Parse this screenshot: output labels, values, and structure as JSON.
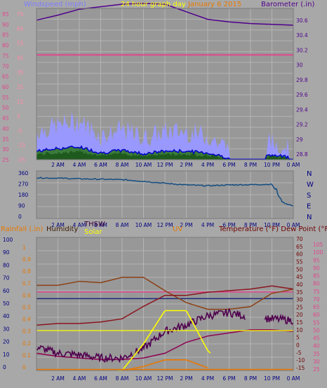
{
  "header": {
    "windspeed_label": "Windspeed (mph)",
    "graph_title": "24 hour graph day",
    "date_label": "January 6 2015",
    "barometer_label": "Barometer (.in)"
  },
  "colors": {
    "background": "#a8a8a8",
    "plot": "#989898",
    "grid": "#b4b4b4",
    "wind_gust": "#9898ff",
    "wind_avg": "#0000c8",
    "wind_low": "#1e5a1e",
    "barometer": "#50008c",
    "pink": "#e0468c",
    "direction": "#144e82",
    "humidity": "#8c4014",
    "temperature": "#8c141e",
    "dewpoint": "#8c0050",
    "thsw": "#50004e",
    "solar": "#ffff00",
    "uv": "#e87800",
    "rainfall": "#e87800",
    "navy": "#1e2878"
  },
  "x_ticks": [
    "2 AM",
    "4 AM",
    "6 AM",
    "8 AM",
    "10 AM",
    "12 PM",
    "2 PM",
    "4 PM",
    "6 PM",
    "8 PM",
    "10 PM",
    "0 AM"
  ],
  "panel1": {
    "wind_ticks": [
      "95",
      "90",
      "85",
      "80",
      "75",
      "70",
      "65",
      "60",
      "55",
      "50",
      "45",
      "40",
      "35",
      "30",
      "25"
    ],
    "barometer_ticks": [
      "30.6",
      "30.4",
      "30.2",
      "30",
      "29.8",
      "29.6",
      "29.4",
      "29.2",
      "29",
      "28.8"
    ],
    "extra_ticks": [
      "75",
      "65",
      "55",
      "45",
      "35",
      "25",
      "15",
      "5",
      "-5",
      "-15",
      "-25"
    ]
  },
  "panel2": {
    "dir_ticks": [
      "360",
      "270",
      "180",
      "90",
      "0"
    ],
    "compass_labels": [
      "N",
      "W",
      "S",
      "E",
      "N"
    ]
  },
  "panel3": {
    "legend": {
      "rainfall": "Rainfall (.in)",
      "humidity": "Humidity",
      "thsw": "THSW",
      "solar": "Solar",
      "uv": "UV",
      "temperature": "Temperature (°F) Dew Point (°F)"
    },
    "left_ticks": [
      "100",
      "90",
      "80",
      "70",
      "60",
      "50",
      "40",
      "30",
      "20",
      "10",
      "0"
    ],
    "rain_ticks": [
      "1",
      "0.9",
      "0.8",
      "0.7",
      "0.6",
      "0.5",
      "0.4",
      "0.3",
      "0.2",
      "0.1",
      "0"
    ],
    "temp_ticks": [
      "70",
      "65",
      "60",
      "55",
      "50",
      "45",
      "40",
      "35",
      "30",
      "25",
      "20",
      "15",
      "10",
      "5",
      "0",
      "-5",
      "-10",
      "-15"
    ],
    "far_ticks": [
      "105",
      "100",
      "95",
      "90",
      "85",
      "80",
      "75",
      "70",
      "65",
      "60",
      "55",
      "50",
      "45",
      "40",
      "35",
      "30",
      "25"
    ]
  },
  "chart_data": [
    {
      "type": "area",
      "title": "24 hour graph day January 6 2015",
      "x": [
        "0 AM",
        "2 AM",
        "4 AM",
        "6 AM",
        "8 AM",
        "10 AM",
        "12 PM",
        "2 PM",
        "4 PM",
        "6 PM",
        "8 PM",
        "10 PM",
        "0 AM"
      ],
      "series": [
        {
          "name": "Windspeed (mph)",
          "axis": "left",
          "values": [
            33,
            36,
            38,
            31,
            34,
            30,
            33,
            33,
            31,
            25,
            25,
            28,
            26
          ]
        },
        {
          "name": "Barometer (.in)",
          "axis": "right",
          "values": [
            30.46,
            30.52,
            30.59,
            30.62,
            30.65,
            30.66,
            30.65,
            30.56,
            30.47,
            30.44,
            30.42,
            30.41,
            30.4
          ]
        }
      ],
      "ylim_left": [
        25,
        95
      ],
      "ylim_right": [
        28.8,
        30.6
      ]
    },
    {
      "type": "line",
      "x": [
        "0 AM",
        "2 AM",
        "4 AM",
        "6 AM",
        "8 AM",
        "10 AM",
        "12 PM",
        "2 PM",
        "4 PM",
        "6 PM",
        "8 PM",
        "10 PM",
        "11 PM",
        "0 AM"
      ],
      "series": [
        {
          "name": "Wind direction",
          "values": [
            335,
            332,
            326,
            322,
            318,
            303,
            285,
            270,
            262,
            270,
            272,
            276,
            110,
            75
          ]
        }
      ],
      "ylim": [
        0,
        360
      ]
    },
    {
      "type": "line",
      "x": [
        "0 AM",
        "2 AM",
        "4 AM",
        "6 AM",
        "8 AM",
        "10 AM",
        "12 PM",
        "2 PM",
        "4 PM",
        "6 PM",
        "8 PM",
        "10 PM",
        "0 AM"
      ],
      "series": [
        {
          "name": "Humidity",
          "axis": "left",
          "values": [
            64,
            64,
            67,
            66,
            70,
            70,
            60,
            51,
            46,
            46,
            48,
            58,
            61
          ]
        },
        {
          "name": "Temperature (°F)",
          "axis": "right",
          "values": [
            14,
            15,
            15,
            16,
            18,
            26,
            33,
            33,
            35,
            36,
            37,
            39,
            37
          ]
        },
        {
          "name": "THSW",
          "axis": "right",
          "values": [
            0,
            -4,
            -5,
            -7,
            -7,
            -1,
            10,
            14,
            20,
            22,
            19,
            18,
            17
          ]
        },
        {
          "name": "Dew Point (°F)",
          "axis": "right",
          "values": [
            -4,
            -6,
            -7,
            -8,
            -8,
            -7,
            -4,
            3,
            7,
            9,
            11,
            11,
            10
          ]
        },
        {
          "name": "Solar",
          "values": [
            0,
            0,
            0,
            0,
            0,
            20,
            45,
            45,
            15,
            0,
            0,
            0,
            0
          ]
        },
        {
          "name": "UV",
          "values": [
            0,
            0,
            0,
            0,
            0,
            3,
            8,
            8,
            2,
            0,
            0,
            0,
            0
          ]
        }
      ],
      "ylim_left": [
        0,
        100
      ],
      "ylim_right": [
        -15,
        70
      ]
    }
  ]
}
